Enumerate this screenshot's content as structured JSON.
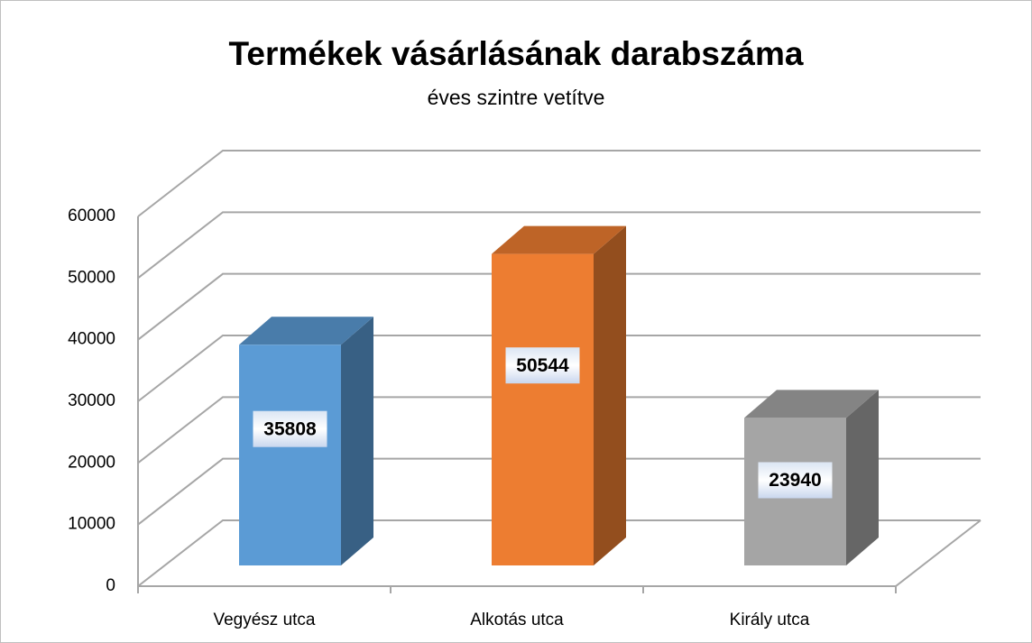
{
  "chart_data": {
    "type": "bar3d",
    "title": "Termékek vásárlásának darabszáma",
    "subtitle": "éves szintre vetítve",
    "categories": [
      "Vegyész utca",
      "Alkotás utca",
      "Király utca"
    ],
    "values": [
      35808,
      50544,
      23940
    ],
    "colors": [
      "#5b9bd5",
      "#ed7d31",
      "#a5a5a5"
    ],
    "ylim": [
      0,
      60000
    ],
    "yticks": [
      0,
      10000,
      20000,
      30000,
      40000,
      50000,
      60000
    ],
    "grid": true
  }
}
